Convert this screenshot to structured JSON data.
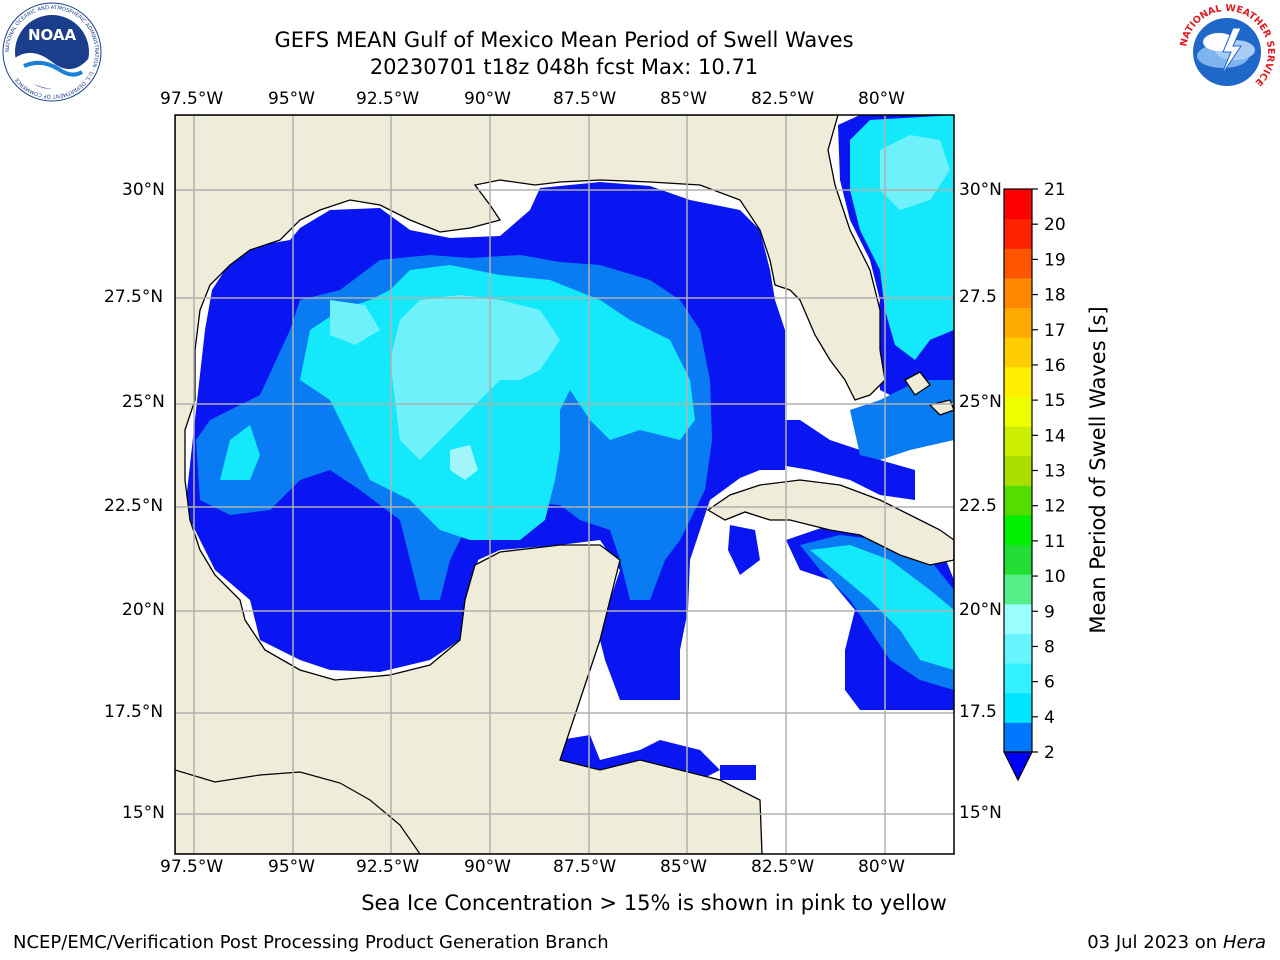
{
  "title": {
    "line1": "GEFS MEAN Gulf of Mexico Mean Period of Swell Waves",
    "line2": "20230701 t18z 048h fcst   Max: 10.71"
  },
  "logos": {
    "left": {
      "text": "NOAA",
      "ring_text": "NATIONAL OCEANIC AND ATMOSPHERIC ADMINISTRATION · U.S. DEPARTMENT OF COMMERCE"
    },
    "right": {
      "ring_text": "NATIONAL WEATHER SERVICE"
    }
  },
  "map": {
    "lon_labels": [
      "97.5°W",
      "95°W",
      "92.5°W",
      "90°W",
      "87.5°W",
      "85°W",
      "82.5°W",
      "80°W"
    ],
    "lat_labels_left": [
      "30°N",
      "27.5°N",
      "25°N",
      "22.5°N",
      "20°N",
      "17.5°N",
      "15°N"
    ],
    "lat_labels_right": [
      "30°N",
      "27.5",
      "25°N",
      "22.5",
      "20°N",
      "17.5",
      "15°N"
    ],
    "colors": {
      "land": "#efedd9",
      "grid": "#b0b0b0",
      "coast": "#000000"
    }
  },
  "colorbar": {
    "label": "Mean Period of Swell Waves [s]",
    "ticks": [
      "2",
      "4",
      "6",
      "8",
      "9",
      "10",
      "11",
      "12",
      "13",
      "14",
      "15",
      "16",
      "17",
      "18",
      "19",
      "20",
      "21"
    ],
    "colors": [
      "#0077ff",
      "#00e5ff",
      "#33f0ff",
      "#66f5ff",
      "#99ffff",
      "#55ee88",
      "#22dd33",
      "#00ee00",
      "#55dd00",
      "#aadd00",
      "#ccee00",
      "#eeff00",
      "#ffee00",
      "#ffcc00",
      "#ffaa00",
      "#ff8800",
      "#ff5500",
      "#ff2200",
      "#ff0000"
    ],
    "extend_color": "#0000ff"
  },
  "footer": {
    "note": "Sea Ice Concentration > 15% is shown in pink to yellow",
    "credit_left": "NCEP/EMC/Verification Post Processing Product Generation Branch",
    "credit_date": "03 Jul 2023 on ",
    "credit_host": "Hera"
  }
}
